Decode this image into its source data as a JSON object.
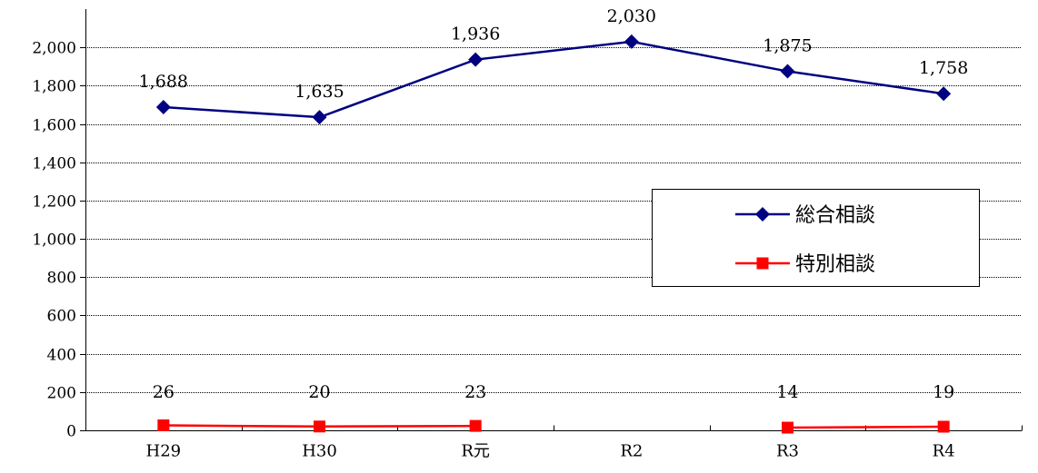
{
  "chart_data": {
    "type": "line",
    "title": "",
    "xlabel": "",
    "ylabel": "",
    "categories": [
      "H29",
      "H30",
      "R元",
      "R2",
      "R3",
      "R4"
    ],
    "ylim": [
      0,
      2200
    ],
    "yticks": [
      0,
      200,
      400,
      600,
      800,
      1000,
      1200,
      1400,
      1600,
      1800,
      2000
    ],
    "ytick_labels": [
      "0",
      "200",
      "400",
      "600",
      "800",
      "1,000",
      "1,200",
      "1,400",
      "1,600",
      "1,800",
      "2,000"
    ],
    "grid": true,
    "legend_position": "right",
    "series": [
      {
        "name": "総合相談",
        "color": "#000080",
        "marker": "diamond",
        "values": [
          1688,
          1635,
          1936,
          2030,
          1875,
          1758
        ],
        "labels": [
          "1,688",
          "1,635",
          "1,936",
          "2,030",
          "1,875",
          "1,758"
        ]
      },
      {
        "name": "特別相談",
        "color": "#ff0000",
        "marker": "square",
        "values": [
          26,
          20,
          23,
          null,
          14,
          19
        ],
        "labels": [
          "26",
          "20",
          "23",
          null,
          "14",
          "19"
        ]
      }
    ]
  }
}
